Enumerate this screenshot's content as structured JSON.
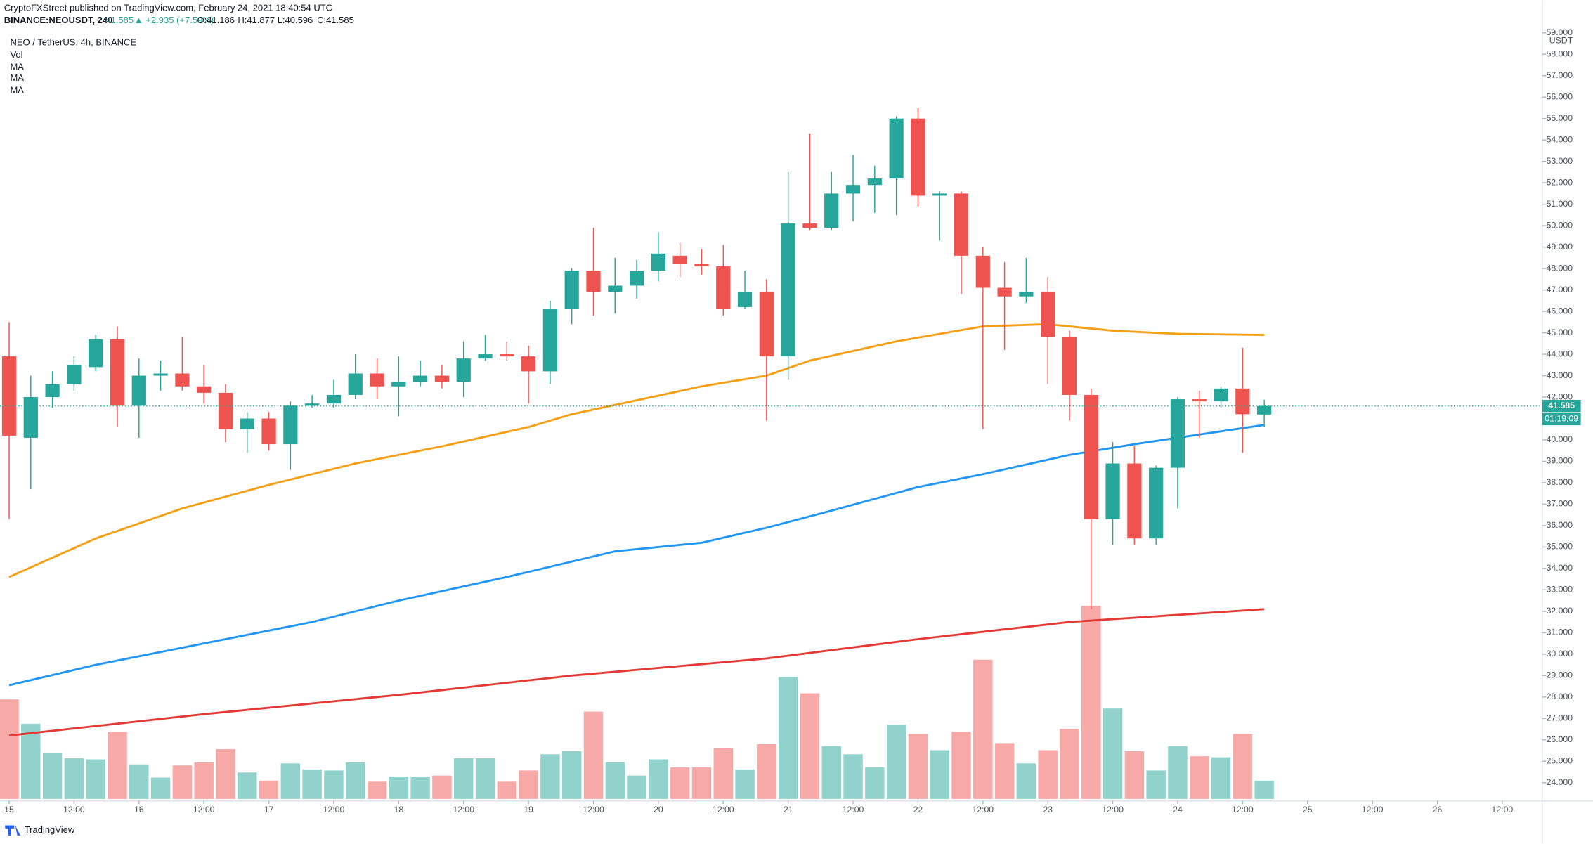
{
  "header": {
    "publisher": "CryptoFXStreet published on TradingView.com, February 24, 2021 18:40:54 UTC",
    "symbol": "BINANCE:NEOUSDT, 240",
    "last": "41.585",
    "change": "▲ +2.935 (+7.59%)",
    "o": "O:41.186",
    "h": "H:41.877",
    "l": "L:40.596",
    "c": "C:41.585"
  },
  "footer": {
    "brand": "TradingView"
  },
  "chart_data": {
    "type": "candlestick",
    "title": "NEO / TetherUS, 4h, BINANCE",
    "axis_unit": "USDT",
    "countdown": "01:19:09",
    "up_color": "#26a69a",
    "down_color": "#ef5350",
    "open": [
      43.9,
      40.1,
      42.0,
      42.6,
      43.4,
      44.7,
      41.6,
      43.0,
      43.1,
      42.5,
      42.2,
      40.5,
      41.0,
      39.8,
      41.6,
      41.7,
      42.1,
      43.1,
      42.5,
      42.7,
      43.0,
      42.7,
      43.8,
      44.0,
      43.9,
      43.2,
      46.1,
      47.9,
      46.9,
      47.2,
      47.9,
      48.6,
      48.2,
      48.1,
      46.2,
      46.9,
      43.9,
      50.1,
      49.9,
      51.5,
      51.9,
      52.2,
      55.0,
      51.4,
      51.5,
      48.6,
      47.1,
      46.7,
      46.9,
      44.8,
      42.1,
      36.3,
      38.9,
      35.4,
      38.7,
      41.9,
      41.8,
      42.4,
      41.186
    ],
    "high": [
      45.5,
      43.0,
      43.2,
      43.9,
      44.9,
      45.3,
      43.8,
      43.7,
      44.8,
      43.5,
      42.6,
      41.3,
      41.3,
      41.8,
      42.1,
      42.8,
      44.0,
      43.8,
      43.9,
      43.7,
      43.5,
      44.6,
      44.9,
      44.6,
      44.4,
      46.5,
      48.0,
      49.9,
      48.5,
      48.4,
      49.7,
      49.2,
      48.9,
      49.1,
      47.9,
      47.5,
      52.5,
      54.3,
      52.5,
      53.3,
      52.8,
      55.1,
      55.5,
      51.6,
      51.6,
      49.0,
      48.3,
      48.5,
      47.6,
      45.1,
      42.4,
      39.9,
      39.7,
      38.8,
      42.0,
      42.3,
      42.5,
      44.3,
      41.877
    ],
    "low": [
      36.3,
      37.7,
      41.5,
      42.3,
      43.2,
      40.6,
      40.1,
      42.3,
      42.3,
      41.7,
      39.9,
      39.4,
      39.5,
      38.6,
      41.5,
      41.5,
      41.9,
      41.9,
      41.1,
      42.5,
      42.4,
      42.0,
      43.7,
      43.7,
      41.7,
      42.6,
      45.4,
      45.8,
      45.9,
      46.6,
      47.4,
      47.6,
      47.7,
      45.8,
      46.1,
      40.9,
      42.8,
      49.8,
      49.8,
      50.2,
      50.6,
      50.5,
      50.9,
      49.3,
      46.8,
      40.5,
      44.2,
      46.4,
      42.6,
      40.9,
      32.1,
      35.1,
      35.1,
      35.1,
      36.8,
      40.1,
      41.5,
      39.4,
      40.596
    ],
    "close": [
      40.2,
      42.0,
      42.6,
      43.5,
      44.7,
      41.6,
      43.0,
      43.1,
      42.5,
      42.2,
      40.5,
      41.0,
      39.8,
      41.6,
      41.7,
      42.1,
      43.1,
      42.5,
      42.7,
      43.0,
      42.7,
      43.8,
      44.0,
      43.9,
      43.2,
      46.1,
      47.9,
      46.9,
      47.2,
      47.9,
      48.7,
      48.2,
      48.1,
      46.1,
      46.9,
      43.9,
      50.1,
      49.9,
      51.5,
      51.9,
      52.2,
      55.0,
      51.4,
      51.5,
      48.6,
      47.1,
      46.7,
      46.9,
      44.8,
      42.1,
      36.3,
      38.9,
      35.4,
      38.7,
      41.9,
      41.8,
      42.4,
      41.2,
      41.585
    ],
    "volume": {
      "name": "Vol",
      "values": [
        98,
        74,
        45,
        40,
        39,
        66,
        34,
        21,
        33,
        36,
        49,
        26,
        18,
        35,
        29,
        28,
        36,
        17,
        22,
        22,
        23,
        40,
        40,
        17,
        28,
        44,
        47,
        86,
        36,
        23,
        39,
        31,
        31,
        50,
        29,
        54,
        120,
        104,
        52,
        44,
        31,
        73,
        64,
        48,
        66,
        137,
        55,
        35,
        48,
        69,
        190,
        89,
        47,
        28,
        52,
        42,
        41,
        64,
        18
      ]
    },
    "series": [
      {
        "name": "MA",
        "color": "#f59f16",
        "x": [
          0,
          4,
          8,
          12,
          16,
          20,
          24,
          26,
          32,
          35,
          37,
          41,
          45,
          48,
          51,
          54,
          58
        ],
        "values": [
          33.6,
          35.4,
          36.8,
          37.9,
          38.9,
          39.7,
          40.6,
          41.2,
          42.5,
          43.0,
          43.7,
          44.6,
          45.3,
          45.4,
          45.1,
          44.95,
          44.9
        ]
      },
      {
        "name": "MA",
        "color": "#2196f3",
        "x": [
          0,
          4,
          9,
          14,
          18,
          23,
          28,
          32,
          35,
          38,
          42,
          45,
          49,
          52,
          58
        ],
        "values": [
          28.55,
          29.5,
          30.5,
          31.5,
          32.5,
          33.6,
          34.8,
          35.2,
          35.9,
          36.7,
          37.8,
          38.4,
          39.3,
          39.8,
          40.7
        ]
      },
      {
        "name": "MA",
        "color": "#e53935",
        "x": [
          0,
          9,
          18,
          26,
          35,
          42,
          49,
          58
        ],
        "values": [
          26.2,
          27.2,
          28.1,
          29.0,
          29.8,
          30.7,
          31.5,
          32.1
        ]
      }
    ],
    "ylim": [
      24,
      59
    ],
    "yticks": [
      {
        "value": 24,
        "label": "24.000"
      },
      {
        "value": 25,
        "label": "25.000"
      },
      {
        "value": 26,
        "label": "26.000"
      },
      {
        "value": 27,
        "label": "27.000"
      },
      {
        "value": 28,
        "label": "28.000"
      },
      {
        "value": 29,
        "label": "29.000"
      },
      {
        "value": 30,
        "label": "30.000"
      },
      {
        "value": 31,
        "label": "31.000"
      },
      {
        "value": 32,
        "label": "32.000"
      },
      {
        "value": 33,
        "label": "33.000"
      },
      {
        "value": 34,
        "label": "34.000"
      },
      {
        "value": 35,
        "label": "35.000"
      },
      {
        "value": 36,
        "label": "36.000"
      },
      {
        "value": 37,
        "label": "37.000"
      },
      {
        "value": 38,
        "label": "38.000"
      },
      {
        "value": 39,
        "label": "39.000"
      },
      {
        "value": 40,
        "label": "40.000"
      },
      {
        "value": 41,
        "label": "41.000"
      },
      {
        "value": 42,
        "label": "42.000"
      },
      {
        "value": 43,
        "label": "43.000"
      },
      {
        "value": 44,
        "label": "44.000"
      },
      {
        "value": 45,
        "label": "45.000"
      },
      {
        "value": 46,
        "label": "46.000"
      },
      {
        "value": 47,
        "label": "47.000"
      },
      {
        "value": 48,
        "label": "48.000"
      },
      {
        "value": 49,
        "label": "49.000"
      },
      {
        "value": 50,
        "label": "50.000"
      },
      {
        "value": 51,
        "label": "51.000"
      },
      {
        "value": 52,
        "label": "52.000"
      },
      {
        "value": 53,
        "label": "53.000"
      },
      {
        "value": 54,
        "label": "54.000"
      },
      {
        "value": 55,
        "label": "55.000"
      },
      {
        "value": 56,
        "label": "56.000"
      },
      {
        "value": 57,
        "label": "57.000"
      },
      {
        "value": 58,
        "label": "58.000"
      },
      {
        "value": 59,
        "label": "59.000"
      }
    ],
    "xticks": [
      {
        "value": 0,
        "label": "15"
      },
      {
        "value": 3,
        "label": "12:00"
      },
      {
        "value": 6,
        "label": "16"
      },
      {
        "value": 9,
        "label": "12:00"
      },
      {
        "value": 12,
        "label": "17"
      },
      {
        "value": 15,
        "label": "12:00"
      },
      {
        "value": 18,
        "label": "18"
      },
      {
        "value": 21,
        "label": "12:00"
      },
      {
        "value": 24,
        "label": "19"
      },
      {
        "value": 27,
        "label": "12:00"
      },
      {
        "value": 30,
        "label": "20"
      },
      {
        "value": 33,
        "label": "12:00"
      },
      {
        "value": 36,
        "label": "21"
      },
      {
        "value": 39,
        "label": "12:00"
      },
      {
        "value": 42,
        "label": "22"
      },
      {
        "value": 45,
        "label": "12:00"
      },
      {
        "value": 48,
        "label": "23"
      },
      {
        "value": 51,
        "label": "12:00"
      },
      {
        "value": 54,
        "label": "24"
      },
      {
        "value": 57,
        "label": "12:00"
      },
      {
        "value": 60,
        "label": "25"
      },
      {
        "value": 63,
        "label": "12:00"
      },
      {
        "value": 66,
        "label": "26"
      },
      {
        "value": 69,
        "label": "12:00"
      }
    ]
  }
}
